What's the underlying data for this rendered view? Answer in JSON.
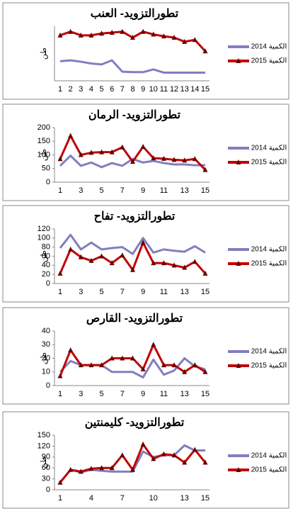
{
  "chart_data": [
    {
      "type": "line",
      "title": "تطورالتزويد- العنب",
      "ylabel": "طن",
      "categories": [
        "1",
        "2",
        "3",
        "4",
        "5",
        "6",
        "7",
        "8",
        "9",
        "10",
        "11",
        "12",
        "13",
        "14",
        "15"
      ],
      "ylim": [
        0,
        120
      ],
      "series": [
        {
          "name": "الكمية 2014",
          "color": "#7f7fbf",
          "values": [
            43,
            45,
            42,
            38,
            36,
            45,
            20,
            19,
            19,
            25,
            18,
            18,
            18,
            18,
            18
          ]
        },
        {
          "name": "الكمية 2015",
          "color": "#c00000",
          "marker": "triangle",
          "values": [
            100,
            108,
            100,
            100,
            104,
            106,
            108,
            95,
            108,
            102,
            98,
            95,
            86,
            90,
            65
          ]
        }
      ]
    },
    {
      "type": "line",
      "title": "تطورالتزويد- الرمان",
      "ylabel": "طن",
      "categories": [
        "1",
        null,
        "3",
        null,
        "5",
        null,
        "7",
        null,
        "9",
        null,
        "11",
        null,
        "13",
        null,
        "15"
      ],
      "ylim": [
        0,
        200
      ],
      "yticks": [
        0,
        50,
        100,
        150,
        200
      ],
      "series": [
        {
          "name": "الكمية 2014",
          "color": "#7f7fbf",
          "values": [
            60,
            97,
            60,
            72,
            55,
            70,
            60,
            85,
            72,
            78,
            70,
            65,
            65,
            62,
            62
          ]
        },
        {
          "name": "الكمية 2015",
          "color": "#c00000",
          "marker": "triangle",
          "values": [
            85,
            170,
            100,
            108,
            110,
            110,
            128,
            75,
            130,
            88,
            86,
            82,
            80,
            85,
            45
          ]
        }
      ]
    },
    {
      "type": "line",
      "title": "تطورالتزويد- تفاح",
      "ylabel": "طن",
      "categories": [
        "1",
        null,
        "3",
        null,
        "5",
        null,
        "7",
        null,
        "9",
        null,
        "11",
        null,
        "13",
        null,
        "15"
      ],
      "ylim": [
        0,
        120
      ],
      "yticks": [
        0,
        20,
        40,
        60,
        80,
        100,
        120
      ],
      "series": [
        {
          "name": "الكمية 2014",
          "color": "#7f7fbf",
          "values": [
            78,
            107,
            75,
            90,
            75,
            78,
            80,
            65,
            100,
            68,
            75,
            72,
            70,
            82,
            68
          ]
        },
        {
          "name": "الكمية 2015",
          "color": "#c00000",
          "marker": "triangle",
          "values": [
            22,
            75,
            58,
            50,
            60,
            45,
            62,
            30,
            90,
            45,
            45,
            40,
            35,
            48,
            22
          ]
        }
      ]
    },
    {
      "type": "line",
      "title": "تطورالتزويد- القارص",
      "ylabel": "طن",
      "categories": [
        "1",
        null,
        "3",
        null,
        "5",
        null,
        "7",
        null,
        "9",
        null,
        "11",
        null,
        "13",
        null,
        "15"
      ],
      "ylim": [
        0,
        40
      ],
      "yticks": [
        0,
        10,
        20,
        30,
        40
      ],
      "series": [
        {
          "name": "الكمية 2014",
          "color": "#7f7fbf",
          "values": [
            10,
            18,
            15,
            15,
            15,
            10,
            10,
            10,
            6,
            19,
            8,
            11,
            20,
            14,
            12
          ]
        },
        {
          "name": "الكمية 2015",
          "color": "#c00000",
          "marker": "triangle",
          "values": [
            7,
            26,
            15,
            15,
            15,
            20,
            20,
            20,
            12,
            30,
            15,
            15,
            10,
            15,
            10
          ]
        }
      ]
    },
    {
      "type": "line",
      "title": "تطورالتزويد- كليمنتين",
      "ylabel": "طن",
      "categories": [
        "1",
        null,
        null,
        "4",
        null,
        null,
        "7",
        null,
        null,
        "10",
        null,
        null,
        "13",
        null,
        "15"
      ],
      "ylim": [
        0,
        150
      ],
      "yticks": [
        0,
        30,
        60,
        90,
        120,
        150
      ],
      "series": [
        {
          "name": "الكمية 2014",
          "color": "#7f7fbf",
          "values": [
            20,
            55,
            48,
            55,
            52,
            50,
            50,
            50,
            105,
            90,
            95,
            95,
            122,
            108,
            108
          ]
        },
        {
          "name": "الكمية 2015",
          "color": "#c00000",
          "marker": "triangle",
          "values": [
            20,
            55,
            50,
            58,
            60,
            60,
            95,
            55,
            125,
            85,
            98,
            95,
            75,
            110,
            75
          ]
        }
      ]
    }
  ]
}
